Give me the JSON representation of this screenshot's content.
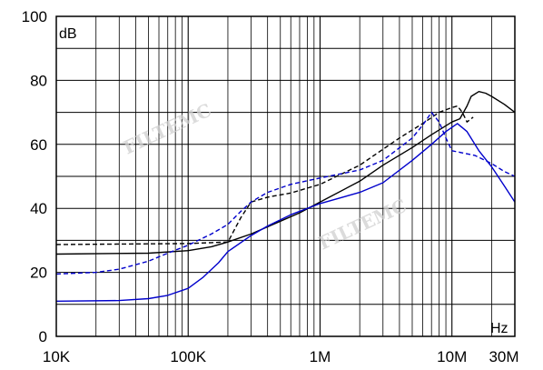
{
  "chart_data": {
    "type": "line",
    "title": "",
    "ylabel": "dB",
    "xlabel": "Hz",
    "x_scale": "log",
    "xlim": [
      10000,
      30000000
    ],
    "ylim": [
      0,
      100
    ],
    "grid": true,
    "x_ticks": [
      {
        "value": 10000,
        "label": "10K"
      },
      {
        "value": 100000,
        "label": "100K"
      },
      {
        "value": 1000000,
        "label": "1M"
      },
      {
        "value": 10000000,
        "label": "10M"
      },
      {
        "value": 30000000,
        "label": "30M"
      }
    ],
    "y_ticks": [
      {
        "value": 0,
        "label": "0"
      },
      {
        "value": 20,
        "label": "20"
      },
      {
        "value": 40,
        "label": "40"
      },
      {
        "value": 60,
        "label": "60"
      },
      {
        "value": 80,
        "label": "80"
      },
      {
        "value": 100,
        "label": "100"
      }
    ],
    "watermarks": [
      "FILTEMC",
      "FILTEMC"
    ],
    "series": [
      {
        "color": "#000000",
        "style": "solid",
        "points": [
          [
            10000,
            25.7
          ],
          [
            50000,
            26.0
          ],
          [
            100000,
            26.8
          ],
          [
            150000,
            28.0
          ],
          [
            200000,
            29.5
          ],
          [
            300000,
            32.0
          ],
          [
            500000,
            36.0
          ],
          [
            700000,
            38.6
          ],
          [
            1000000,
            42.0
          ],
          [
            2000000,
            48.5
          ],
          [
            3000000,
            53.5
          ],
          [
            5000000,
            59.0
          ],
          [
            7000000,
            63.0
          ],
          [
            10000000,
            67.0
          ],
          [
            11500000,
            68.0
          ],
          [
            13000000,
            72.0
          ],
          [
            14000000,
            75.0
          ],
          [
            16000000,
            76.5
          ],
          [
            18000000,
            76.0
          ],
          [
            20000000,
            75.0
          ],
          [
            25000000,
            72.5
          ],
          [
            30000000,
            70.0
          ]
        ]
      },
      {
        "color": "#000000",
        "style": "dashed",
        "points": [
          [
            10000,
            28.7
          ],
          [
            100000,
            29.0
          ],
          [
            150000,
            29.3
          ],
          [
            200000,
            29.5
          ],
          [
            250000,
            37.0
          ],
          [
            300000,
            42.0
          ],
          [
            400000,
            43.5
          ],
          [
            600000,
            44.8
          ],
          [
            1000000,
            47.5
          ],
          [
            2000000,
            53.5
          ],
          [
            4000000,
            62.0
          ],
          [
            6000000,
            66.5
          ],
          [
            8000000,
            70.0
          ],
          [
            10000000,
            71.5
          ],
          [
            11000000,
            72.0
          ],
          [
            12000000,
            70.0
          ],
          [
            13000000,
            67.0
          ],
          [
            14500000,
            68.5
          ]
        ]
      },
      {
        "color": "#0000cc",
        "style": "solid",
        "points": [
          [
            10000,
            11.0
          ],
          [
            30000,
            11.2
          ],
          [
            50000,
            11.8
          ],
          [
            70000,
            12.8
          ],
          [
            100000,
            15.0
          ],
          [
            130000,
            18.5
          ],
          [
            170000,
            23.0
          ],
          [
            200000,
            26.5
          ],
          [
            300000,
            31.5
          ],
          [
            400000,
            34.5
          ],
          [
            600000,
            38.0
          ],
          [
            1000000,
            41.5
          ],
          [
            2000000,
            45.0
          ],
          [
            3000000,
            48.0
          ],
          [
            5000000,
            55.0
          ],
          [
            7000000,
            60.0
          ],
          [
            9000000,
            64.0
          ],
          [
            11000000,
            66.5
          ],
          [
            13000000,
            64.0
          ],
          [
            16000000,
            58.0
          ],
          [
            20000000,
            53.0
          ],
          [
            25000000,
            47.0
          ],
          [
            30000000,
            42.0
          ]
        ]
      },
      {
        "color": "#0000cc",
        "style": "dashed",
        "points": [
          [
            10000,
            19.5
          ],
          [
            20000,
            20.0
          ],
          [
            30000,
            21.0
          ],
          [
            50000,
            23.5
          ],
          [
            70000,
            26.0
          ],
          [
            100000,
            28.5
          ],
          [
            150000,
            32.0
          ],
          [
            200000,
            35.0
          ],
          [
            250000,
            39.0
          ],
          [
            300000,
            42.0
          ],
          [
            400000,
            45.0
          ],
          [
            600000,
            47.5
          ],
          [
            1000000,
            49.5
          ],
          [
            2000000,
            52.0
          ],
          [
            3000000,
            55.0
          ],
          [
            5000000,
            62.0
          ],
          [
            6000000,
            66.0
          ],
          [
            7000000,
            70.0
          ],
          [
            8000000,
            67.0
          ],
          [
            9000000,
            62.0
          ],
          [
            10000000,
            58.0
          ],
          [
            15000000,
            56.5
          ],
          [
            20000000,
            54.0
          ],
          [
            25000000,
            51.5
          ],
          [
            30000000,
            50.0
          ]
        ]
      }
    ]
  }
}
